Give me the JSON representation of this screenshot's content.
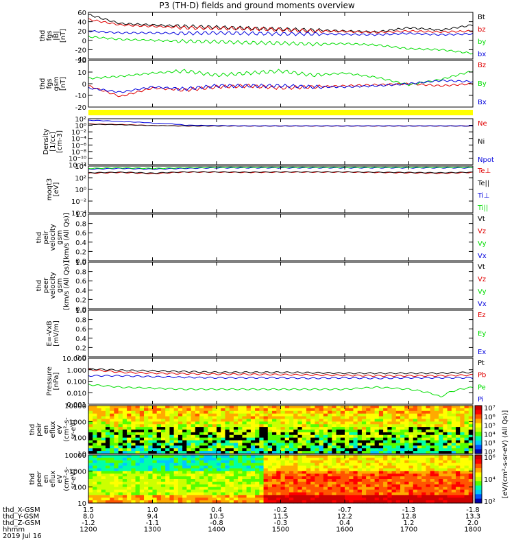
{
  "title": "P3 (TH-D) fields and ground moments overview",
  "colors": {
    "black": "#000000",
    "red": "#e00000",
    "green": "#00dd00",
    "blue": "#0000dd",
    "yellow": "#ffff00"
  },
  "chart_data": [
    {
      "type": "line",
      "ylabel_lines": [
        "thd",
        "fgs",
        "|B|",
        "[nT]"
      ],
      "ylim": [
        -40,
        60
      ],
      "yticks": [
        "60",
        "40",
        "20",
        "0",
        "-20",
        "-40"
      ],
      "series": [
        {
          "name": "Bt",
          "color": "black",
          "values": [
            55,
            36,
            33,
            30,
            28,
            26,
            24,
            22,
            20,
            18,
            27,
            22,
            33
          ]
        },
        {
          "name": "bz",
          "color": "red",
          "values": [
            45,
            33,
            30,
            27,
            26,
            25,
            23,
            20,
            19,
            17,
            20,
            18,
            20
          ]
        },
        {
          "name": "by",
          "color": "green",
          "values": [
            8,
            2,
            0,
            -2,
            -3,
            -5,
            -6,
            -8,
            -7,
            -10,
            -18,
            -20,
            -28
          ]
        },
        {
          "name": "bx",
          "color": "blue",
          "values": [
            20,
            16,
            16,
            15,
            16,
            15,
            14,
            14,
            13,
            12,
            15,
            12,
            14
          ]
        }
      ]
    },
    {
      "type": "line",
      "ylabel_lines": [
        "thd",
        "fgs",
        "gsm",
        "[nT]"
      ],
      "ylim": [
        -22,
        22
      ],
      "yticks": [
        "20",
        "10",
        "0",
        "-10",
        "-20"
      ],
      "series": [
        {
          "name": "Bz",
          "color": "red",
          "values": [
            -2,
            -12,
            -4,
            -6,
            -3,
            -2,
            -4,
            -3,
            -2,
            -1,
            0,
            -2,
            0
          ]
        },
        {
          "name": "By",
          "color": "green",
          "values": [
            5,
            7,
            10,
            12,
            8,
            10,
            12,
            8,
            10,
            6,
            -1,
            4,
            12
          ]
        },
        {
          "name": "Bx",
          "color": "blue",
          "values": [
            -4,
            -8,
            -3,
            -5,
            -2,
            -2,
            -2,
            -3,
            -3,
            -2,
            0,
            3,
            2
          ]
        }
      ]
    },
    {
      "type": "line",
      "ylabel_lines": [
        "Density",
        "[1/cc]",
        "[cm-3]"
      ],
      "ylim": [
        1e-14,
        100
      ],
      "log": true,
      "yticks": [
        "10²",
        "10⁰",
        "10⁻²",
        "10⁻⁴",
        "10⁻⁶",
        "10⁻⁸",
        "10⁻¹⁰",
        "10⁻¹²"
      ],
      "series": [
        {
          "name": "Ne",
          "color": "red",
          "values": [
            1.5,
            1,
            0.4,
            0.3,
            0.3,
            0.3,
            0.3,
            0.3,
            0.3,
            0.3,
            0.3,
            0.3,
            0.3
          ]
        },
        {
          "name": "Ni",
          "color": "black",
          "values": [
            1.2,
            0.8,
            0.4,
            0.3,
            0.3,
            0.3,
            0.3,
            0.3,
            0.3,
            0.3,
            0.3,
            0.3,
            0.3
          ]
        },
        {
          "name": "Npot",
          "color": "blue",
          "values": [
            30,
            10,
            3,
            0.6,
            0.4,
            0.3,
            0.3,
            0.3,
            0.3,
            0.3,
            0.3,
            0.3,
            0.3
          ]
        }
      ]
    },
    {
      "type": "line",
      "ylabel_lines": [
        "moqt3",
        "[eV]"
      ],
      "ylim": [
        0.0001,
        10000.0
      ],
      "log": true,
      "yticks": [
        "10⁴",
        "10²",
        "10⁰",
        "10⁻²",
        "10⁻⁴"
      ],
      "series": [
        {
          "name": "Te⊥",
          "color": "red",
          "values": [
            600,
            800,
            500,
            900,
            900,
            800,
            900,
            900,
            900,
            800,
            700,
            600,
            800
          ]
        },
        {
          "name": "Te||",
          "color": "black",
          "values": [
            700,
            900,
            600,
            1000,
            1000,
            900,
            1000,
            1000,
            1000,
            900,
            800,
            700,
            900
          ]
        },
        {
          "name": "Ti⊥",
          "color": "blue",
          "values": [
            3000,
            4000,
            3000,
            4000,
            5000,
            5000,
            5000,
            5000,
            5000,
            5000,
            5000,
            5000,
            5000
          ]
        },
        {
          "name": "Ti||",
          "color": "green",
          "values": [
            4000,
            5000,
            4000,
            5000,
            6000,
            6000,
            6000,
            6000,
            6000,
            6000,
            6000,
            6000,
            6000
          ]
        }
      ]
    },
    {
      "type": "line",
      "ylabel_lines": [
        "thd",
        "peir",
        "velocity",
        "gsm",
        "[km/s (All Qs)]"
      ],
      "ylim": [
        0,
        1
      ],
      "yticks": [
        "1.0",
        "0.8",
        "0.6",
        "0.4",
        "0.2",
        "0.0"
      ],
      "series": [
        {
          "name": "Vt",
          "color": "black",
          "values": []
        },
        {
          "name": "Vz",
          "color": "red",
          "values": []
        },
        {
          "name": "Vy",
          "color": "green",
          "values": []
        },
        {
          "name": "Vx",
          "color": "blue",
          "values": []
        }
      ]
    },
    {
      "type": "line",
      "ylabel_lines": [
        "thd",
        "peer",
        "velocity",
        "gsm",
        "[km/s (All Qs)]"
      ],
      "ylim": [
        0,
        1
      ],
      "yticks": [
        "1.0",
        "0.8",
        "0.6",
        "0.4",
        "0.2",
        "0.0"
      ],
      "series": [
        {
          "name": "Vt",
          "color": "black",
          "values": []
        },
        {
          "name": "Vz",
          "color": "red",
          "values": []
        },
        {
          "name": "Vy",
          "color": "green",
          "values": []
        },
        {
          "name": "Vx",
          "color": "blue",
          "values": []
        }
      ]
    },
    {
      "type": "line",
      "ylabel_lines": [
        "E=-VxB",
        "[mV/m]"
      ],
      "ylim": [
        0,
        1
      ],
      "yticks": [
        "1.0",
        "0.8",
        "0.6",
        "0.4",
        "0.2",
        "0.0"
      ],
      "series": [
        {
          "name": "Ez",
          "color": "red",
          "values": []
        },
        {
          "name": "Ey",
          "color": "green",
          "values": []
        },
        {
          "name": "Ex",
          "color": "blue",
          "values": []
        }
      ]
    },
    {
      "type": "line",
      "ylabel_lines": [
        "Pressure",
        "[nPa]"
      ],
      "ylim": [
        0.001,
        10
      ],
      "log": true,
      "yticks": [
        "10.000",
        "1.000",
        "0.100",
        "0.010",
        "0.001"
      ],
      "series": [
        {
          "name": "Pt",
          "color": "black",
          "values": [
            1.2,
            0.9,
            0.8,
            0.7,
            0.6,
            0.6,
            0.6,
            0.55,
            0.5,
            0.5,
            0.5,
            0.5,
            0.6
          ]
        },
        {
          "name": "Pb",
          "color": "red",
          "values": [
            1.0,
            0.6,
            0.5,
            0.45,
            0.42,
            0.4,
            0.38,
            0.35,
            0.33,
            0.3,
            0.3,
            0.3,
            0.35
          ]
        },
        {
          "name": "Pe",
          "color": "green",
          "values": [
            0.05,
            0.03,
            0.025,
            0.02,
            0.02,
            0.02,
            0.02,
            0.02,
            0.02,
            0.03,
            0.02,
            0.004,
            0.03
          ]
        },
        {
          "name": "Pi",
          "color": "blue",
          "values": [
            0.3,
            0.3,
            0.25,
            0.22,
            0.2,
            0.2,
            0.2,
            0.18,
            0.2,
            0.18,
            0.2,
            0.2,
            0.2
          ]
        }
      ]
    },
    {
      "type": "heatmap",
      "ylabel_lines": [
        "thd",
        "peir",
        "en",
        "eflux",
        "eV",
        "(cm²-s-",
        "sr-eV)"
      ],
      "yticks": [
        "10000",
        "1000",
        "100",
        "10"
      ],
      "zlim_exp": [
        2,
        7
      ]
    },
    {
      "type": "heatmap",
      "ylabel_lines": [
        "thd",
        "peer",
        "en",
        "eflux",
        "eV",
        "(cm²-s-",
        "sr-eV)"
      ],
      "yticks": [
        "10000",
        "1000",
        "100",
        "10"
      ],
      "zlim_exp": [
        2,
        7
      ]
    }
  ],
  "colorbar": {
    "label": "[eV/(cm²-s-sr-eV) (All Qs)]",
    "top_ticks": [
      "10⁷",
      "10⁶",
      "10⁵",
      "10⁴",
      "10³",
      "10²"
    ],
    "bottom_ticks": [
      "10⁶",
      "10⁴",
      "10²"
    ]
  },
  "footer": {
    "rows": [
      {
        "label": "thd_X-GSM",
        "values": [
          "1.5",
          "1.0",
          "0.4",
          "-0.2",
          "-0.7",
          "-1.3",
          "-1.8"
        ]
      },
      {
        "label": "thd_Y-GSM",
        "values": [
          "8.0",
          "9.4",
          "10.5",
          "11.5",
          "12.2",
          "12.8",
          "13.3"
        ]
      },
      {
        "label": "thd_Z-GSM",
        "values": [
          "-1.2",
          "-1.1",
          "-0.8",
          "-0.3",
          "0.4",
          "1.2",
          "2.0"
        ]
      },
      {
        "label": "hhmm",
        "values": [
          "1200",
          "1300",
          "1400",
          "1500",
          "1600",
          "1700",
          "1800"
        ]
      }
    ],
    "date": "2019 Jul 16"
  }
}
